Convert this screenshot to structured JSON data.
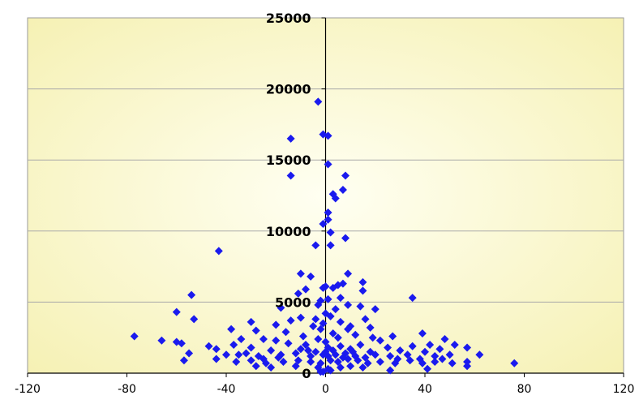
{
  "chart_data": {
    "type": "scatter",
    "title": "",
    "xlabel": "",
    "ylabel": "",
    "xlim": [
      -120,
      120
    ],
    "ylim": [
      0,
      25000
    ],
    "x_ticks": [
      "-120",
      "-80",
      "-40",
      "0",
      "40",
      "80",
      "120"
    ],
    "y_ticks": [
      "0",
      "5000",
      "10000",
      "15000",
      "20000",
      "25000"
    ],
    "grid": "horizontal",
    "legend": "none",
    "colors": {
      "marker": "#1a1aee",
      "gridline": "#a9a9a9",
      "background_inner": "#fffff2",
      "background_outer": "#f5f0b0"
    },
    "series": [
      {
        "points": [
          [
            -3,
            19100
          ],
          [
            -1,
            16800
          ],
          [
            1,
            16700
          ],
          [
            -14,
            16500
          ],
          [
            1,
            14700
          ],
          [
            8,
            13900
          ],
          [
            -14,
            13900
          ],
          [
            7,
            12900
          ],
          [
            3,
            12600
          ],
          [
            4,
            12300
          ],
          [
            1,
            11300
          ],
          [
            1,
            10800
          ],
          [
            -1,
            10500
          ],
          [
            2,
            9900
          ],
          [
            8,
            9500
          ],
          [
            2,
            9000
          ],
          [
            -4,
            9000
          ],
          [
            -43,
            8600
          ],
          [
            9,
            7000
          ],
          [
            -10,
            7000
          ],
          [
            -6,
            6800
          ],
          [
            15,
            6400
          ],
          [
            0,
            6100
          ],
          [
            -1,
            6000
          ],
          [
            3,
            6000
          ],
          [
            5,
            6200
          ],
          [
            7,
            6300
          ],
          [
            -8,
            5900
          ],
          [
            15,
            5800
          ],
          [
            -11,
            5600
          ],
          [
            -54,
            5500
          ],
          [
            6,
            5300
          ],
          [
            35,
            5300
          ],
          [
            -2,
            5100
          ],
          [
            1,
            5200
          ],
          [
            -3,
            4800
          ],
          [
            9,
            4800
          ],
          [
            -18,
            4600
          ],
          [
            4,
            4500
          ],
          [
            14,
            4700
          ],
          [
            20,
            4500
          ],
          [
            -60,
            4300
          ],
          [
            0,
            4200
          ],
          [
            -4,
            3800
          ],
          [
            -10,
            3900
          ],
          [
            -14,
            3700
          ],
          [
            2,
            4000
          ],
          [
            6,
            3600
          ],
          [
            16,
            3800
          ],
          [
            -53,
            3800
          ],
          [
            -20,
            3400
          ],
          [
            -30,
            3600
          ],
          [
            -5,
            3300
          ],
          [
            -1,
            3500
          ],
          [
            9,
            3100
          ],
          [
            18,
            3200
          ],
          [
            -38,
            3100
          ],
          [
            -28,
            3000
          ],
          [
            -16,
            2900
          ],
          [
            12,
            2700
          ],
          [
            27,
            2600
          ],
          [
            39,
            2800
          ],
          [
            -77,
            2600
          ],
          [
            -34,
            2400
          ],
          [
            -25,
            2400
          ],
          [
            -20,
            2300
          ],
          [
            -3,
            2400
          ],
          [
            5,
            2500
          ],
          [
            22,
            2300
          ],
          [
            48,
            2400
          ],
          [
            -66,
            2300
          ],
          [
            -58,
            2100
          ],
          [
            -60,
            2200
          ],
          [
            -47,
            1900
          ],
          [
            -37,
            2000
          ],
          [
            -15,
            2100
          ],
          [
            -8,
            2000
          ],
          [
            0,
            2200
          ],
          [
            6,
            1900
          ],
          [
            14,
            2000
          ],
          [
            25,
            1800
          ],
          [
            35,
            1900
          ],
          [
            42,
            2000
          ],
          [
            52,
            2000
          ],
          [
            57,
            1800
          ],
          [
            -44,
            1700
          ],
          [
            -30,
            1800
          ],
          [
            -22,
            1600
          ],
          [
            -10,
            1700
          ],
          [
            -4,
            1500
          ],
          [
            3,
            1600
          ],
          [
            10,
            1700
          ],
          [
            18,
            1500
          ],
          [
            30,
            1600
          ],
          [
            40,
            1500
          ],
          [
            46,
            1700
          ],
          [
            -55,
            1400
          ],
          [
            -40,
            1300
          ],
          [
            -32,
            1400
          ],
          [
            -27,
            1200
          ],
          [
            -18,
            1300
          ],
          [
            -12,
            1400
          ],
          [
            -6,
            1200
          ],
          [
            -1,
            1300
          ],
          [
            1,
            1200
          ],
          [
            4,
            1300
          ],
          [
            8,
            1400
          ],
          [
            12,
            1200
          ],
          [
            20,
            1300
          ],
          [
            26,
            1200
          ],
          [
            33,
            1300
          ],
          [
            38,
            1000
          ],
          [
            44,
            1200
          ],
          [
            50,
            1300
          ],
          [
            62,
            1300
          ],
          [
            -57,
            900
          ],
          [
            -44,
            1000
          ],
          [
            -36,
            800
          ],
          [
            -30,
            900
          ],
          [
            -24,
            700
          ],
          [
            -17,
            800
          ],
          [
            -11,
            900
          ],
          [
            -6,
            800
          ],
          [
            -2,
            700
          ],
          [
            2,
            900
          ],
          [
            5,
            800
          ],
          [
            9,
            1000
          ],
          [
            13,
            900
          ],
          [
            17,
            700
          ],
          [
            22,
            800
          ],
          [
            28,
            700
          ],
          [
            34,
            900
          ],
          [
            39,
            700
          ],
          [
            44,
            800
          ],
          [
            51,
            700
          ],
          [
            57,
            800
          ],
          [
            76,
            700
          ],
          [
            -28,
            500
          ],
          [
            -22,
            400
          ],
          [
            -12,
            500
          ],
          [
            -3,
            400
          ],
          [
            1,
            300
          ],
          [
            -1,
            100
          ],
          [
            2,
            200
          ],
          [
            6,
            400
          ],
          [
            10,
            500
          ],
          [
            15,
            400
          ],
          [
            26,
            200
          ],
          [
            41,
            300
          ],
          [
            57,
            500
          ],
          [
            -2,
            100
          ],
          [
            0,
            1500
          ],
          [
            1,
            1800
          ],
          [
            -7,
            1600
          ],
          [
            7,
            1100
          ],
          [
            11,
            1500
          ],
          [
            16,
            1100
          ],
          [
            -19,
            1100
          ],
          [
            -25,
            1000
          ],
          [
            -35,
            1300
          ],
          [
            29,
            1000
          ],
          [
            47,
            1000
          ],
          [
            19,
            2500
          ],
          [
            -9,
            2600
          ],
          [
            3,
            2800
          ],
          [
            -2,
            3100
          ],
          [
            10,
            3300
          ]
        ]
      }
    ]
  }
}
